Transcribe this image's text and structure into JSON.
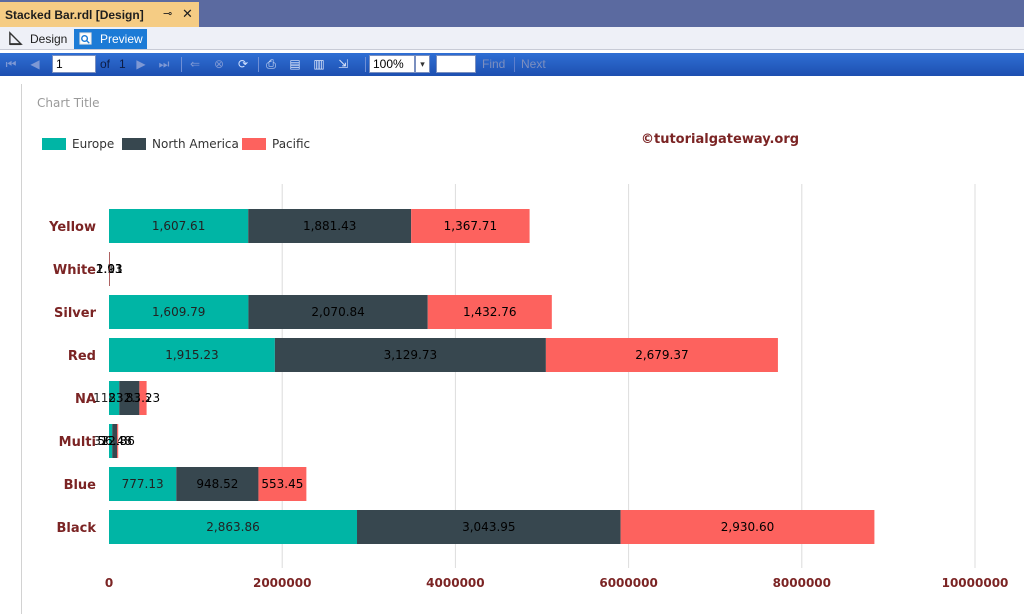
{
  "window": {
    "doc_tab_title": "Stacked Bar.rdl [Design]",
    "pin_glyph": "⊸",
    "close_glyph": "✕"
  },
  "view_tabs": {
    "design": "Design",
    "preview": "Preview"
  },
  "report_toolbar": {
    "page_number": "1",
    "of_label": "of",
    "total_pages": "1",
    "zoom": "100%",
    "find_value": "",
    "find_label": "Find",
    "next_label": "Next"
  },
  "watermark": "©tutorialgateway.org",
  "colors": {
    "europe": "#00b5a5",
    "north_america": "#37474f",
    "pacific": "#fd625e",
    "category_label": "#7b2424"
  },
  "chart_data": {
    "type": "bar",
    "stacked": true,
    "orientation": "horizontal",
    "title": "Chart Title",
    "legend_position": "top-left",
    "categories": [
      "Yellow",
      "White",
      "Silver",
      "Red",
      "NA",
      "Multi",
      "Blue",
      "Black"
    ],
    "series": [
      {
        "name": "Europe",
        "color": "#00b5a5",
        "values": [
          1607610,
          1130,
          1609790,
          1915230,
          118130,
          37130,
          777130,
          2863860
        ],
        "labels": [
          "1,607.61",
          "1.13",
          "1,609.79",
          "1,915.23",
          "118.13",
          "37.13",
          "777.13",
          "2,863.86"
        ]
      },
      {
        "name": "North America",
        "color": "#37474f",
        "values": [
          1881430,
          2930,
          2070840,
          3129730,
          232760,
          56480,
          948520,
          3043950
        ],
        "labels": [
          "1,881.43",
          "2.93",
          "2,070.84",
          "3,129.73",
          "232.76",
          "56.48",
          "948.52",
          "3,043.95"
        ]
      },
      {
        "name": "Pacific",
        "color": "#fd625e",
        "values": [
          1367710,
          1010,
          1432760,
          2679370,
          83230,
          12860,
          553450,
          2930600
        ],
        "labels": [
          "1,367.71",
          "1.01",
          "1,432.76",
          "2,679.37",
          "83.23",
          "12.86",
          "553.45",
          "2,930.60"
        ]
      }
    ],
    "xlim": [
      0,
      10000000
    ],
    "x_ticks": [
      0,
      2000000,
      4000000,
      6000000,
      8000000,
      10000000
    ],
    "x_tick_labels": [
      "0",
      "2000000",
      "4000000",
      "6000000",
      "8000000",
      "10000000"
    ],
    "grid": true
  }
}
